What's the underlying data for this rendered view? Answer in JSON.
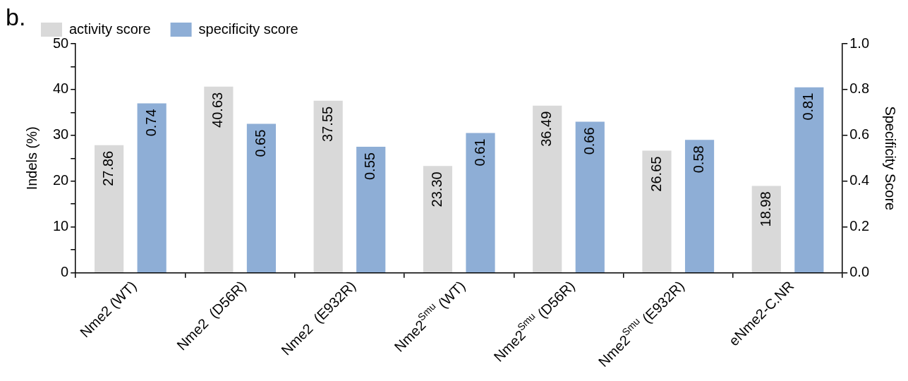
{
  "chart_data": {
    "type": "bar",
    "annotations": [
      "b."
    ],
    "categories": [
      "Nme2 (WT)",
      "Nme2  (D56R)",
      "Nme2  (E932R)",
      "Nme2$^{Smu}$ (WT)",
      "Nme2$^{Smu}$ (D56R)",
      "Nme2$^{Smu}$ (E932R)",
      "eNme2-C.NR"
    ],
    "series": [
      {
        "name": "activity score",
        "color": "#d9d9d9",
        "values": [
          27.86,
          40.63,
          37.55,
          23.3,
          36.49,
          26.65,
          18.98
        ],
        "value_labels": [
          "27.86",
          "40.63",
          "37.55",
          "23.30",
          "36.49",
          "26.65",
          "18.98"
        ]
      },
      {
        "name": "specificity score",
        "color": "#8eaed6",
        "axis": "y2",
        "values": [
          0.74,
          0.65,
          0.55,
          0.61,
          0.66,
          0.58,
          0.81
        ],
        "value_labels": [
          "0.74",
          "0.65",
          "0.55",
          "0.61",
          "0.66",
          "0.58",
          "0.81"
        ]
      }
    ],
    "ylabel": "Indels (%)",
    "y2label": "Specificity Score",
    "ylim": [
      0,
      50
    ],
    "yticks": [
      0,
      {
        "value": 5,
        "label": null
      },
      10,
      {
        "value": 15,
        "label": null
      },
      20,
      {
        "value": 25,
        "label": null
      },
      30,
      {
        "value": 35,
        "label": null
      },
      40,
      {
        "value": 45,
        "label": null
      },
      50
    ],
    "y2lim": [
      0,
      1
    ],
    "y2ticks": [
      {
        "value": 0,
        "label": "0.0"
      },
      {
        "value": 0.2,
        "label": "0.2"
      },
      {
        "value": 0.4,
        "label": "0.4"
      },
      {
        "value": 0.6,
        "label": "0.6"
      },
      {
        "value": 0.8,
        "label": "0.8"
      },
      {
        "value": 1,
        "label": "1.0"
      }
    ],
    "grid": false,
    "legend": "top left"
  }
}
